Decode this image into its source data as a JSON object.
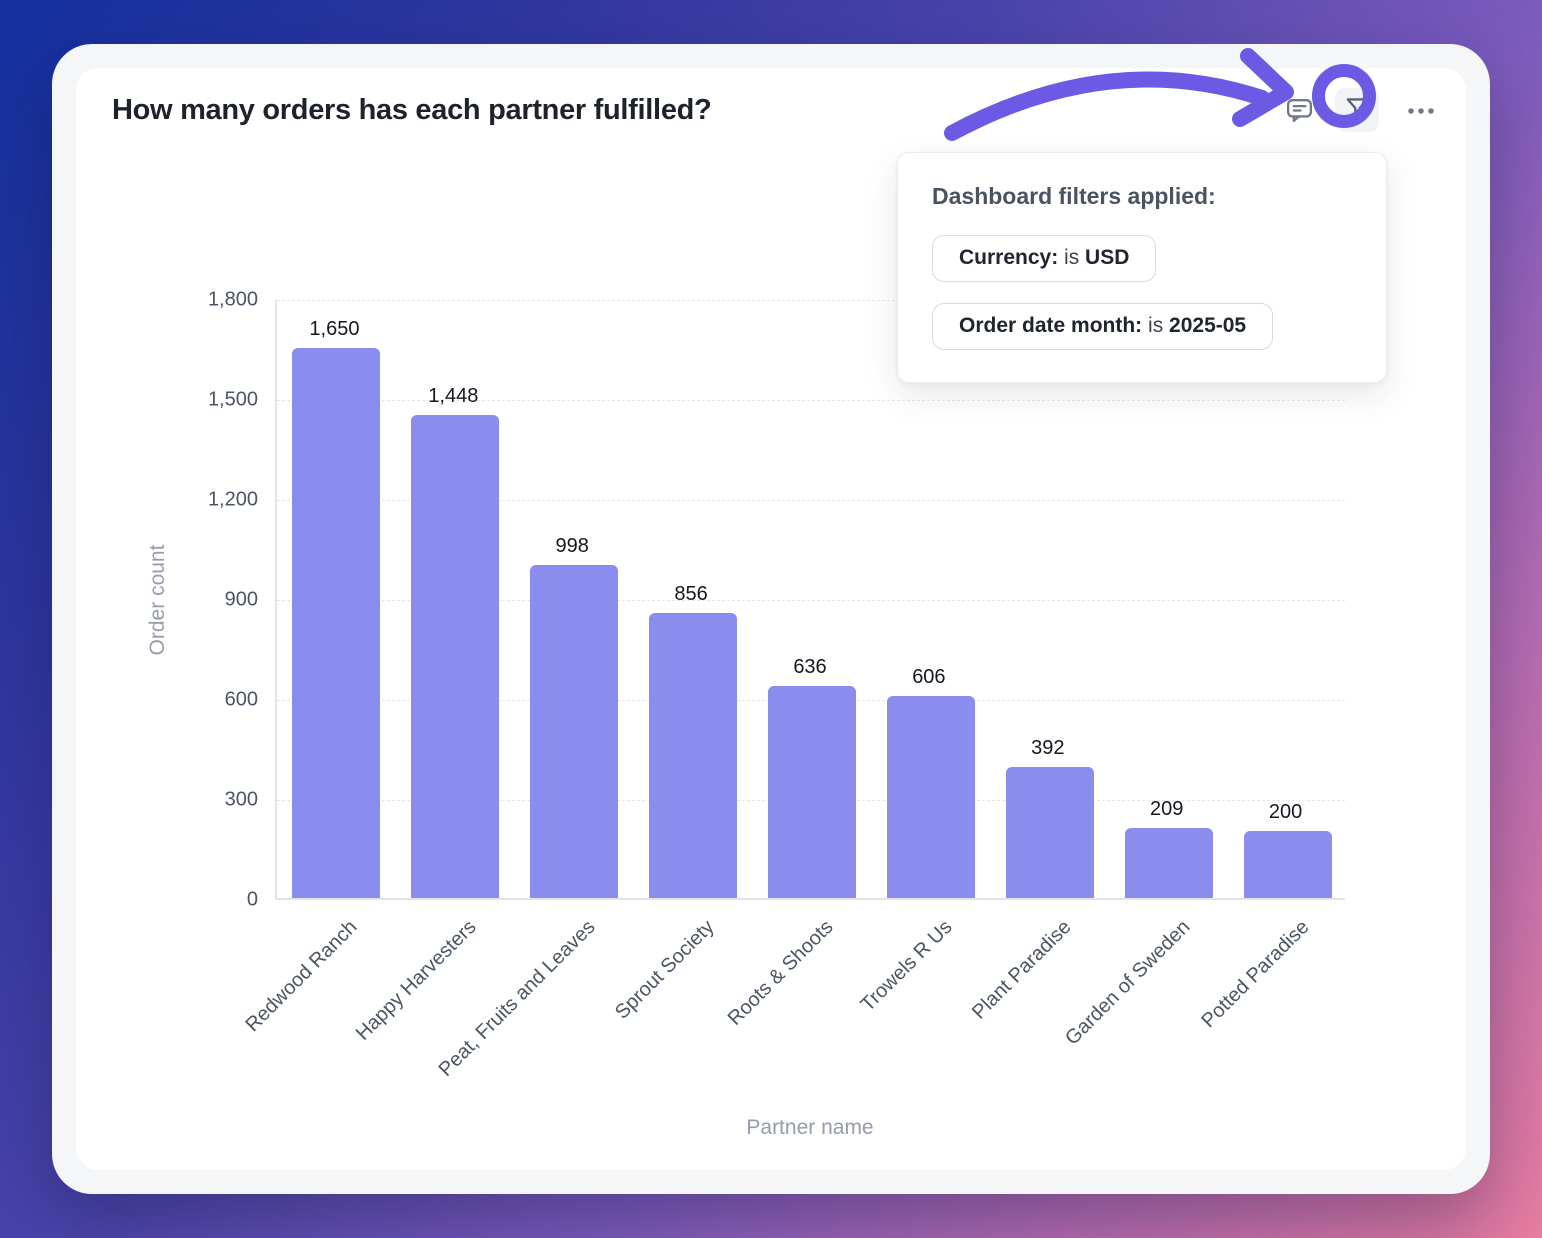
{
  "card": {
    "title": "How many orders has each partner fulfilled?"
  },
  "popover": {
    "heading": "Dashboard filters applied:",
    "filters": [
      {
        "label": "Currency:",
        "operator": "is",
        "value": "USD"
      },
      {
        "label": "Order date month:",
        "operator": "is",
        "value": "2025-05"
      }
    ]
  },
  "chart_data": {
    "type": "bar",
    "title": "How many orders has each partner fulfilled?",
    "categories": [
      "Redwood Ranch",
      "Happy Harvesters",
      "Peat, Fruits and Leaves",
      "Sprout Society",
      "Roots & Shoots",
      "Trowels R Us",
      "Plant Paradise",
      "Garden of Sweden",
      "Potted Paradise"
    ],
    "values": [
      1650,
      1448,
      998,
      856,
      636,
      606,
      392,
      209,
      200
    ],
    "value_labels": [
      "1,650",
      "1,448",
      "998",
      "856",
      "636",
      "606",
      "392",
      "209",
      "200"
    ],
    "xlabel": "Partner name",
    "ylabel": "Order count",
    "ylim": [
      0,
      1800
    ],
    "ytick_values": [
      0,
      300,
      600,
      900,
      1200,
      1500,
      1800
    ],
    "ytick_labels": [
      "0",
      "300",
      "600",
      "900",
      "1,200",
      "1,500",
      "1,800"
    ],
    "grid": "horizontal-dashed",
    "legend": "none",
    "bar_color": "#8a8cee"
  },
  "colors": {
    "annotation_purple": "#6d5ae4",
    "bar_fill": "#8a8cee",
    "card_bg": "#ffffff",
    "frame_bg": "#f5f6f8",
    "gradient_start": "#14309f",
    "gradient_end": "#e87da0"
  }
}
